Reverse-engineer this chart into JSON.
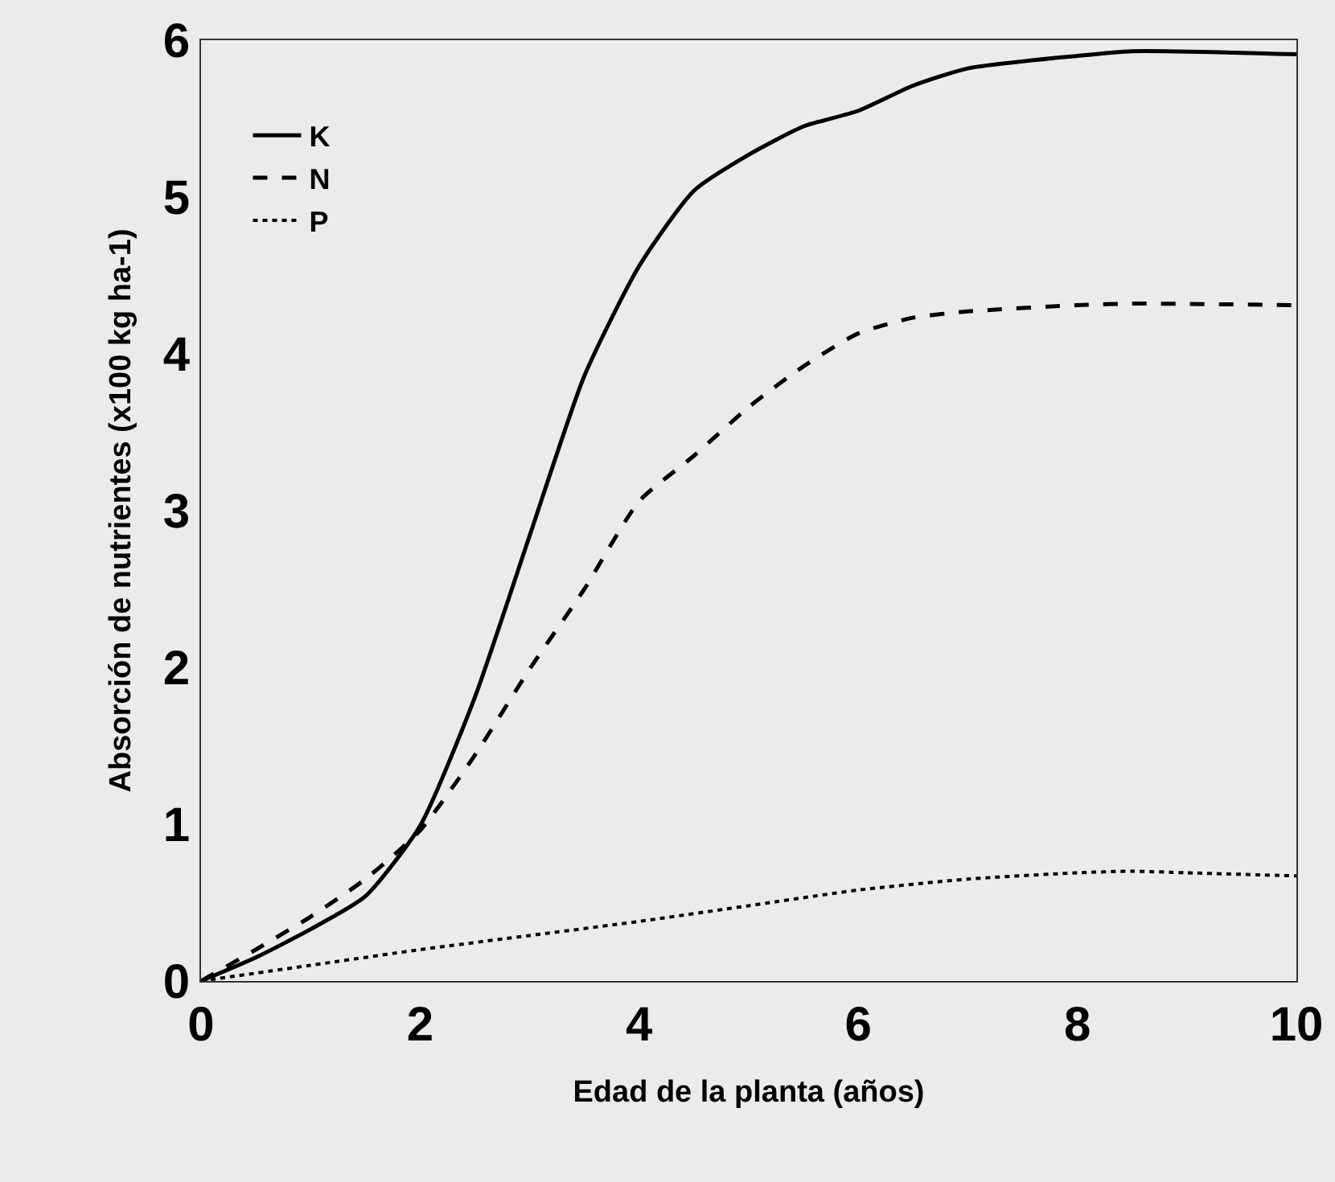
{
  "chart_data": {
    "type": "line",
    "xlabel": "Edad de la planta (años)",
    "ylabel": "Absorción de nutrientes (x100 kg ha-1)",
    "xlim": [
      0,
      10
    ],
    "xticks": [
      0,
      2,
      4,
      6,
      8,
      10
    ],
    "ylim": [
      0,
      6
    ],
    "yticks": [
      0,
      1,
      2,
      3,
      4,
      5,
      6
    ],
    "grid": false,
    "legend": "top left",
    "marker": "none",
    "series": [
      {
        "name": "K",
        "color": "#000000",
        "line_style": "solid",
        "x": [
          0,
          0.5,
          1,
          1.5,
          2,
          2.5,
          3,
          3.5,
          4,
          4.5,
          5,
          5.5,
          6,
          6.5,
          7,
          8,
          8.5,
          10
        ],
        "values": [
          0,
          0.15,
          0.33,
          0.54,
          0.99,
          1.81,
          2.84,
          3.86,
          4.56,
          5.04,
          5.27,
          5.45,
          5.55,
          5.71,
          5.82,
          5.9,
          5.93,
          5.91
        ]
      },
      {
        "name": "N",
        "color": "#000000",
        "line_style": "dashed",
        "x": [
          0,
          0.5,
          1,
          1.5,
          2,
          2.5,
          3,
          3.5,
          4,
          4.5,
          5,
          5.5,
          6,
          6.5,
          7,
          8,
          8.5,
          10
        ],
        "values": [
          0,
          0.2,
          0.41,
          0.65,
          0.96,
          1.44,
          1.99,
          2.5,
          3.06,
          3.35,
          3.66,
          3.92,
          4.13,
          4.23,
          4.27,
          4.31,
          4.32,
          4.31
        ]
      },
      {
        "name": "P",
        "color": "#000000",
        "line_style": "dotted",
        "x": [
          0,
          1,
          2,
          3,
          4,
          5,
          6,
          7,
          8,
          8.5,
          9,
          10
        ],
        "values": [
          0,
          0.1,
          0.2,
          0.29,
          0.38,
          0.48,
          0.58,
          0.65,
          0.69,
          0.7,
          0.69,
          0.67
        ]
      }
    ]
  }
}
